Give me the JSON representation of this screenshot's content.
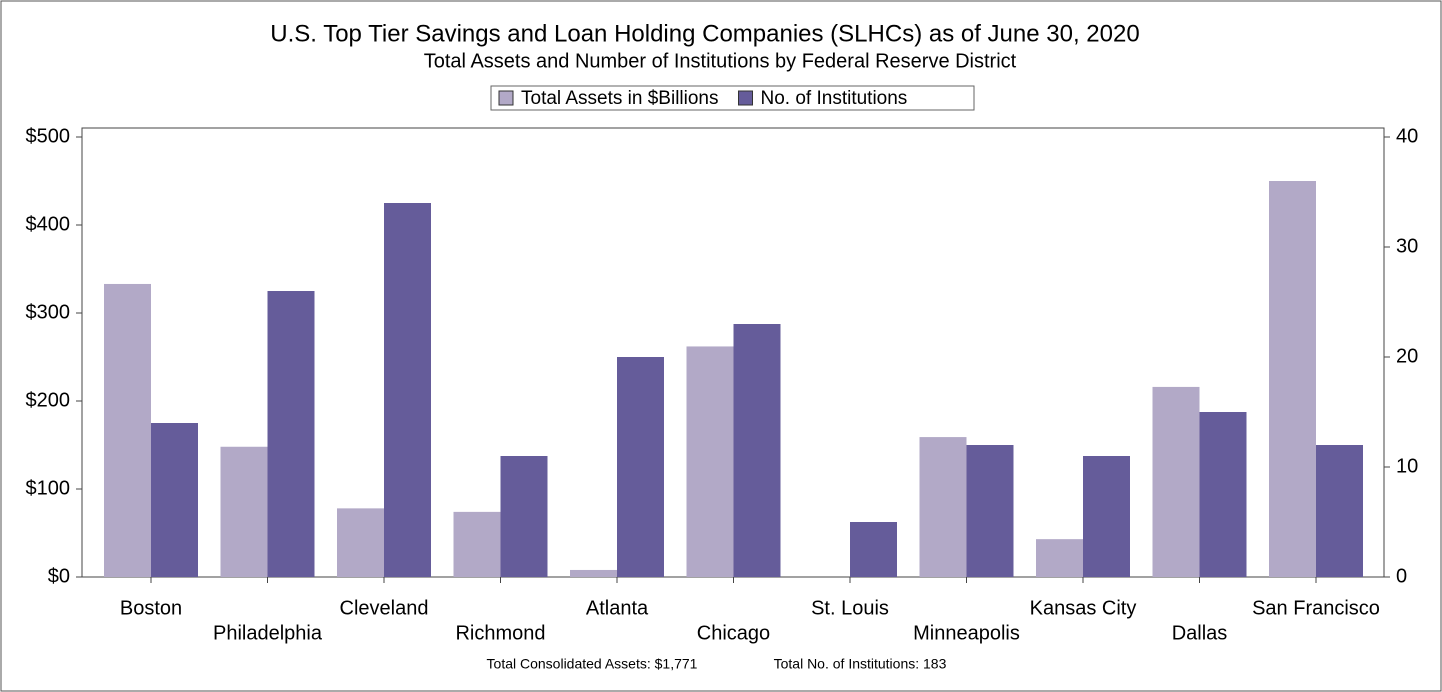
{
  "chart_data": {
    "type": "bar",
    "title": "U.S. Top Tier Savings and Loan Holding Companies (SLHCs) as of June 30, 2020",
    "subtitle": "Total Assets and Number of Institutions by Federal Reserve District",
    "categories": [
      "Boston",
      "Philadelphia",
      "Cleveland",
      "Richmond",
      "Atlanta",
      "Chicago",
      "St. Louis",
      "Minneapolis",
      "Kansas City",
      "Dallas",
      "San Francisco"
    ],
    "series": [
      {
        "name": "Total Assets in $Billions",
        "color": "#b2a9c7",
        "values": [
          333,
          148,
          78,
          74,
          8,
          262,
          0,
          159,
          43,
          216,
          450
        ]
      },
      {
        "name": "No. of Institutions",
        "color": "#655c9a",
        "axis": "y2",
        "values": [
          14,
          26,
          34,
          11,
          20,
          23,
          5,
          12,
          11,
          15,
          12
        ]
      }
    ],
    "ylim": [
      0,
      500
    ],
    "yticks": [
      {
        "value": 0,
        "label": "$0"
      },
      {
        "value": 100,
        "label": "$100"
      },
      {
        "value": 200,
        "label": "$200"
      },
      {
        "value": 300,
        "label": "$300"
      },
      {
        "value": 400,
        "label": "$400"
      },
      {
        "value": 500,
        "label": "$500"
      }
    ],
    "y2lim": [
      0,
      40
    ],
    "y2ticks": [
      0,
      10,
      20,
      30,
      40
    ],
    "annotations": [
      "Total Consolidated Assets: $1,771",
      "Total No. of Institutions: 183"
    ],
    "legend": "top"
  }
}
